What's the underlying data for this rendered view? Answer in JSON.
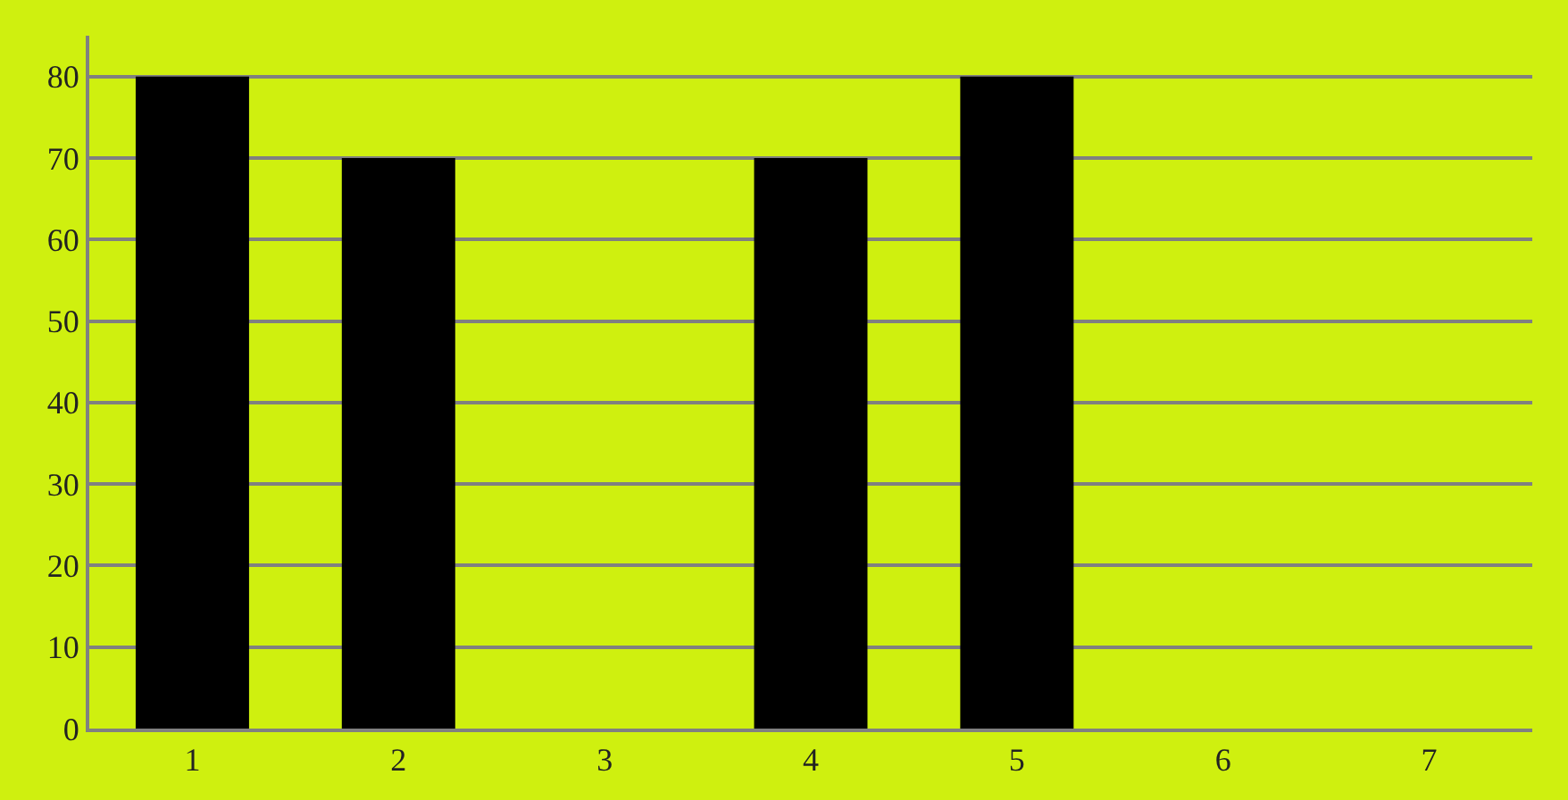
{
  "chart_data": {
    "type": "bar",
    "categories": [
      "1",
      "2",
      "3",
      "4",
      "5",
      "6",
      "7"
    ],
    "values": [
      80,
      70,
      0,
      70,
      80,
      0,
      0
    ],
    "color": "#000000",
    "ylim": [
      0,
      85
    ],
    "yticks": [
      0,
      10,
      20,
      30,
      40,
      50,
      60,
      70,
      80
    ],
    "grid": "y",
    "legend": false
  }
}
